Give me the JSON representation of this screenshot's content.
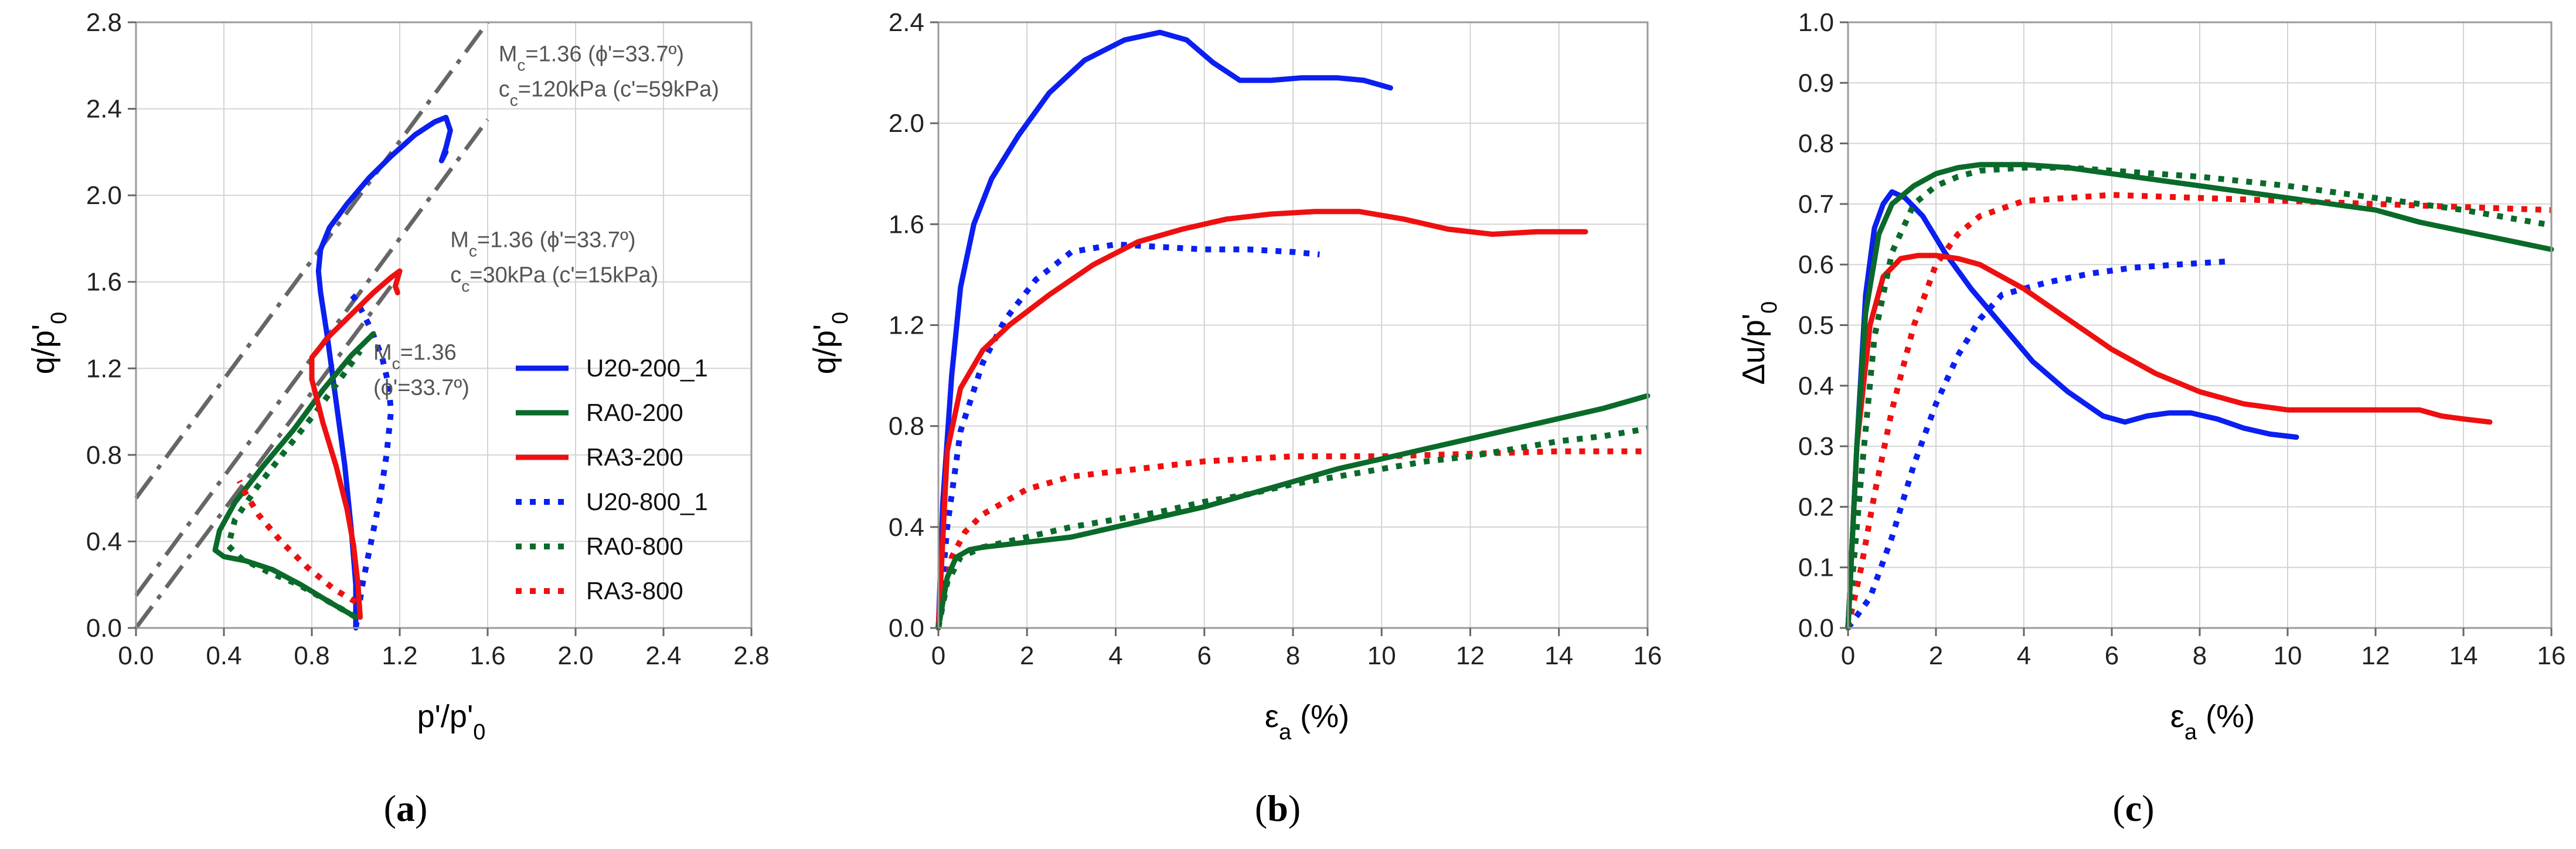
{
  "figure": {
    "background": "#ffffff"
  },
  "series_styles": {
    "U20-200_1": {
      "color": "#0b1ff0",
      "dash": "solid"
    },
    "RA0-200": {
      "color": "#0a6a2a",
      "dash": "solid"
    },
    "RA3-200": {
      "color": "#ee1010",
      "dash": "solid"
    },
    "U20-800_1": {
      "color": "#0b1ff0",
      "dash": "dot"
    },
    "RA0-800": {
      "color": "#0a6a2a",
      "dash": "dot"
    },
    "RA3-800": {
      "color": "#ee1010",
      "dash": "dot"
    }
  },
  "chart_data": [
    {
      "id": "a",
      "type": "line",
      "panel_label": "(a)",
      "panel_letter": "a",
      "xlabel": "p'/p'",
      "xlabel_sub": "0",
      "ylabel": "q/p'",
      "ylabel_sub": "0",
      "xlim": [
        0,
        2.8
      ],
      "ylim": [
        0,
        2.8
      ],
      "xticks": [
        0.0,
        0.4,
        0.8,
        1.2,
        1.6,
        2.0,
        2.4,
        2.8
      ],
      "yticks": [
        0.0,
        0.4,
        0.8,
        1.2,
        1.6,
        2.0,
        2.4,
        2.8
      ],
      "tick_decimals": 1,
      "grid": true,
      "reference_lines": [
        {
          "name": "CSL c'=59kPa",
          "x": [
            0.0,
            1.6
          ],
          "y": [
            0.6,
            2.8
          ],
          "style": "dashdot",
          "color": "#666666"
        },
        {
          "name": "CSL c'=15kPa",
          "x": [
            0.0,
            1.6
          ],
          "y": [
            0.15,
            2.35
          ],
          "style": "dashdot",
          "color": "#666666"
        },
        {
          "name": "CSL c'=0",
          "x": [
            0.0,
            1.16
          ],
          "y": [
            0.0,
            1.58
          ],
          "style": "dashdot",
          "color": "#666666"
        }
      ],
      "annotations": [
        {
          "id": "annot-1",
          "line1": "M",
          "line1_sub": "c",
          "line1_rest": "=1.36 (ϕ'=33.7º)",
          "line2": "c",
          "line2_sub": "c",
          "line2_rest": "=120kPa (c'=59kPa)",
          "at": [
            1.65,
            2.62
          ]
        },
        {
          "id": "annot-2",
          "line1": "M",
          "line1_sub": "c",
          "line1_rest": "=1.36 (ϕ'=33.7º)",
          "line2": "c",
          "line2_sub": "c",
          "line2_rest": "=30kPa (c'=15kPa)",
          "at": [
            1.43,
            1.76
          ]
        },
        {
          "id": "annot-3",
          "line1": "M",
          "line1_sub": "c",
          "line1_rest": "=1.36",
          "line2": "(ϕ'=33.7º)",
          "line2_sub": "",
          "line2_rest": "",
          "at": [
            1.08,
            1.24
          ]
        }
      ],
      "legend": {
        "placement": "right-middle",
        "entries": [
          "U20-200_1",
          "RA0-200",
          "RA3-200",
          "U20-800_1",
          "RA0-800",
          "RA3-800"
        ]
      },
      "series": [
        {
          "name": "U20-200_1",
          "x": [
            1.0,
            1.0,
            0.98,
            0.95,
            0.91,
            0.87,
            0.84,
            0.83,
            0.84,
            0.88,
            0.96,
            1.06,
            1.16,
            1.27,
            1.36,
            1.41,
            1.43,
            1.41,
            1.39,
            1.41
          ],
          "y": [
            0.0,
            0.2,
            0.45,
            0.75,
            1.05,
            1.35,
            1.55,
            1.65,
            1.75,
            1.85,
            1.96,
            2.08,
            2.18,
            2.28,
            2.34,
            2.36,
            2.3,
            2.22,
            2.16,
            2.2
          ]
        },
        {
          "name": "U20-800_1",
          "x": [
            1.0,
            1.03,
            1.07,
            1.11,
            1.14,
            1.16,
            1.15,
            1.12,
            1.07,
            1.02,
            0.99,
            0.97
          ],
          "y": [
            0.0,
            0.2,
            0.4,
            0.6,
            0.8,
            1.0,
            1.12,
            1.25,
            1.38,
            1.48,
            1.53,
            1.55
          ]
        },
        {
          "name": "RA0-200",
          "x": [
            1.0,
            0.88,
            0.75,
            0.62,
            0.5,
            0.4,
            0.36,
            0.38,
            0.45,
            0.58,
            0.72,
            0.85,
            0.98,
            1.05,
            1.08
          ],
          "y": [
            0.05,
            0.12,
            0.2,
            0.27,
            0.31,
            0.33,
            0.36,
            0.45,
            0.58,
            0.75,
            0.92,
            1.1,
            1.26,
            1.33,
            1.36
          ]
        },
        {
          "name": "RA0-800",
          "x": [
            1.0,
            0.88,
            0.74,
            0.6,
            0.48,
            0.42,
            0.45,
            0.55,
            0.68,
            0.82,
            0.95,
            1.02
          ],
          "y": [
            0.05,
            0.12,
            0.2,
            0.26,
            0.32,
            0.38,
            0.5,
            0.65,
            0.82,
            1.0,
            1.18,
            1.28
          ]
        },
        {
          "name": "RA3-200",
          "x": [
            1.02,
            1.01,
            0.99,
            0.96,
            0.91,
            0.85,
            0.8,
            0.8,
            0.88,
            0.98,
            1.08,
            1.16,
            1.2,
            1.18,
            1.19
          ],
          "y": [
            0.05,
            0.2,
            0.38,
            0.55,
            0.75,
            0.95,
            1.15,
            1.25,
            1.35,
            1.45,
            1.55,
            1.62,
            1.65,
            1.58,
            1.55
          ]
        },
        {
          "name": "RA3-800",
          "x": [
            1.0,
            0.9,
            0.78,
            0.66,
            0.56,
            0.5,
            0.47
          ],
          "y": [
            0.12,
            0.18,
            0.28,
            0.4,
            0.52,
            0.62,
            0.68
          ]
        }
      ]
    },
    {
      "id": "b",
      "type": "line",
      "panel_label": "(b)",
      "panel_letter": "b",
      "xlabel": "ε",
      "xlabel_sub": "a",
      "xlabel_rest": " (%)",
      "ylabel": "q/p'",
      "ylabel_sub": "0",
      "xlim": [
        0,
        16
      ],
      "ylim": [
        0,
        2.4
      ],
      "xticks": [
        0,
        2,
        4,
        6,
        8,
        10,
        12,
        14,
        16
      ],
      "yticks": [
        0.0,
        0.4,
        0.8,
        1.2,
        1.6,
        2.0,
        2.4
      ],
      "tick_decimals": 1,
      "grid": true,
      "series": [
        {
          "name": "U20-200_1",
          "x": [
            0,
            0.1,
            0.3,
            0.5,
            0.8,
            1.2,
            1.8,
            2.5,
            3.3,
            4.2,
            5.0,
            5.6,
            6.2,
            6.8,
            7.5,
            8.2,
            9.0,
            9.6,
            10.2
          ],
          "y": [
            0,
            0.5,
            1.0,
            1.35,
            1.6,
            1.78,
            1.95,
            2.12,
            2.25,
            2.33,
            2.36,
            2.33,
            2.24,
            2.17,
            2.17,
            2.18,
            2.18,
            2.17,
            2.14
          ]
        },
        {
          "name": "U20-800_1",
          "x": [
            0,
            0.2,
            0.5,
            1.0,
            1.5,
            2.2,
            3.0,
            4.0,
            5.0,
            6.0,
            7.0,
            8.0,
            8.6
          ],
          "y": [
            0,
            0.4,
            0.78,
            1.05,
            1.22,
            1.38,
            1.49,
            1.52,
            1.51,
            1.5,
            1.5,
            1.49,
            1.48
          ]
        },
        {
          "name": "RA3-200",
          "x": [
            0,
            0.2,
            0.5,
            1.0,
            1.6,
            2.5,
            3.5,
            4.5,
            5.5,
            6.5,
            7.5,
            8.5,
            9.5,
            10.5,
            11.5,
            12.5,
            13.5,
            14.6
          ],
          "y": [
            0,
            0.7,
            0.95,
            1.1,
            1.2,
            1.32,
            1.44,
            1.53,
            1.58,
            1.62,
            1.64,
            1.65,
            1.65,
            1.62,
            1.58,
            1.56,
            1.57,
            1.57
          ]
        },
        {
          "name": "RA3-800",
          "x": [
            0,
            0.1,
            0.3,
            0.6,
            1.0,
            1.5,
            2.0,
            3.0,
            4.0,
            5.0,
            6.0,
            8.0,
            10.0,
            12.0,
            14.0,
            16.0
          ],
          "y": [
            0,
            0.1,
            0.28,
            0.38,
            0.45,
            0.5,
            0.55,
            0.6,
            0.62,
            0.64,
            0.66,
            0.68,
            0.68,
            0.69,
            0.7,
            0.7
          ]
        },
        {
          "name": "RA0-200",
          "x": [
            0,
            0.2,
            0.4,
            0.7,
            1.0,
            1.5,
            2.0,
            3.0,
            4.0,
            5.0,
            6.0,
            7.0,
            8.0,
            9.0,
            10.0,
            11.0,
            12.0,
            13.0,
            14.0,
            15.0,
            16.0
          ],
          "y": [
            0,
            0.2,
            0.28,
            0.31,
            0.32,
            0.33,
            0.34,
            0.36,
            0.4,
            0.44,
            0.48,
            0.53,
            0.58,
            0.63,
            0.67,
            0.71,
            0.75,
            0.79,
            0.83,
            0.87,
            0.92
          ]
        },
        {
          "name": "RA0-800",
          "x": [
            0,
            0.2,
            0.5,
            1.0,
            2.0,
            3.0,
            4.0,
            5.0,
            6.0,
            7.0,
            8.0,
            9.0,
            10.0,
            11.0,
            12.0,
            13.0,
            14.0,
            15.0,
            16.0
          ],
          "y": [
            0,
            0.18,
            0.28,
            0.32,
            0.36,
            0.4,
            0.43,
            0.46,
            0.5,
            0.53,
            0.57,
            0.6,
            0.63,
            0.66,
            0.68,
            0.71,
            0.74,
            0.76,
            0.79
          ]
        }
      ]
    },
    {
      "id": "c",
      "type": "line",
      "panel_label": "(c)",
      "panel_letter": "c",
      "xlabel": "ε",
      "xlabel_sub": "a",
      "xlabel_rest": " (%)",
      "ylabel": "Δu/p'",
      "ylabel_sub": "0",
      "xlim": [
        0,
        16
      ],
      "ylim": [
        0,
        1.0
      ],
      "xticks": [
        0,
        2,
        4,
        6,
        8,
        10,
        12,
        14,
        16
      ],
      "yticks": [
        0.0,
        0.1,
        0.2,
        0.3,
        0.4,
        0.5,
        0.6,
        0.7,
        0.8,
        0.9,
        1.0
      ],
      "tick_decimals": 1,
      "grid": true,
      "series": [
        {
          "name": "U20-200_1",
          "x": [
            0,
            0.2,
            0.4,
            0.6,
            0.8,
            1.0,
            1.3,
            1.7,
            2.2,
            2.8,
            3.5,
            4.2,
            5.0,
            5.8,
            6.3,
            6.8,
            7.3,
            7.8,
            8.4,
            9.0,
            9.6,
            10.2
          ],
          "y": [
            0,
            0.3,
            0.55,
            0.66,
            0.7,
            0.72,
            0.71,
            0.68,
            0.62,
            0.56,
            0.5,
            0.44,
            0.39,
            0.35,
            0.34,
            0.35,
            0.355,
            0.355,
            0.345,
            0.33,
            0.32,
            0.315
          ]
        },
        {
          "name": "U20-800_1",
          "x": [
            0,
            0.5,
            1.0,
            1.5,
            2.0,
            2.5,
            3.0,
            3.5,
            4.5,
            5.5,
            6.5,
            7.5,
            8.6
          ],
          "y": [
            0,
            0.05,
            0.15,
            0.27,
            0.37,
            0.45,
            0.51,
            0.55,
            0.57,
            0.585,
            0.595,
            0.6,
            0.605
          ]
        },
        {
          "name": "RA3-200",
          "x": [
            0,
            0.2,
            0.5,
            0.8,
            1.2,
            1.6,
            2.0,
            2.5,
            3.0,
            4.0,
            5.0,
            6.0,
            7.0,
            8.0,
            9.0,
            10.0,
            11.0,
            12.0,
            13.0,
            13.5,
            14.0,
            14.6
          ],
          "y": [
            0,
            0.3,
            0.5,
            0.58,
            0.61,
            0.615,
            0.615,
            0.61,
            0.6,
            0.56,
            0.51,
            0.46,
            0.42,
            0.39,
            0.37,
            0.36,
            0.36,
            0.36,
            0.36,
            0.35,
            0.345,
            0.34
          ]
        },
        {
          "name": "RA3-800",
          "x": [
            0,
            0.3,
            0.6,
            1.0,
            1.5,
            2.0,
            2.5,
            3.0,
            4.0,
            5.0,
            6.0,
            8.0,
            10.0,
            12.0,
            14.0,
            16.0
          ],
          "y": [
            0,
            0.1,
            0.22,
            0.36,
            0.5,
            0.6,
            0.65,
            0.68,
            0.705,
            0.71,
            0.715,
            0.71,
            0.705,
            0.7,
            0.695,
            0.69
          ]
        },
        {
          "name": "RA0-200",
          "x": [
            0,
            0.2,
            0.4,
            0.7,
            1.0,
            1.5,
            2.0,
            2.5,
            3.0,
            4.0,
            5.0,
            6.0,
            7.0,
            8.0,
            9.0,
            10.0,
            11.0,
            12.0,
            13.0,
            14.0,
            15.0,
            16.0
          ],
          "y": [
            0,
            0.3,
            0.52,
            0.65,
            0.7,
            0.73,
            0.75,
            0.76,
            0.765,
            0.765,
            0.76,
            0.75,
            0.74,
            0.73,
            0.72,
            0.71,
            0.7,
            0.69,
            0.67,
            0.655,
            0.64,
            0.625
          ]
        },
        {
          "name": "RA0-800",
          "x": [
            0,
            0.3,
            0.6,
            1.0,
            1.5,
            2.0,
            2.5,
            3.0,
            4.0,
            5.0,
            6.0,
            8.0,
            10.0,
            12.0,
            14.0,
            16.0
          ],
          "y": [
            0,
            0.25,
            0.48,
            0.62,
            0.7,
            0.73,
            0.745,
            0.755,
            0.76,
            0.76,
            0.755,
            0.745,
            0.73,
            0.71,
            0.69,
            0.665
          ]
        }
      ]
    }
  ]
}
